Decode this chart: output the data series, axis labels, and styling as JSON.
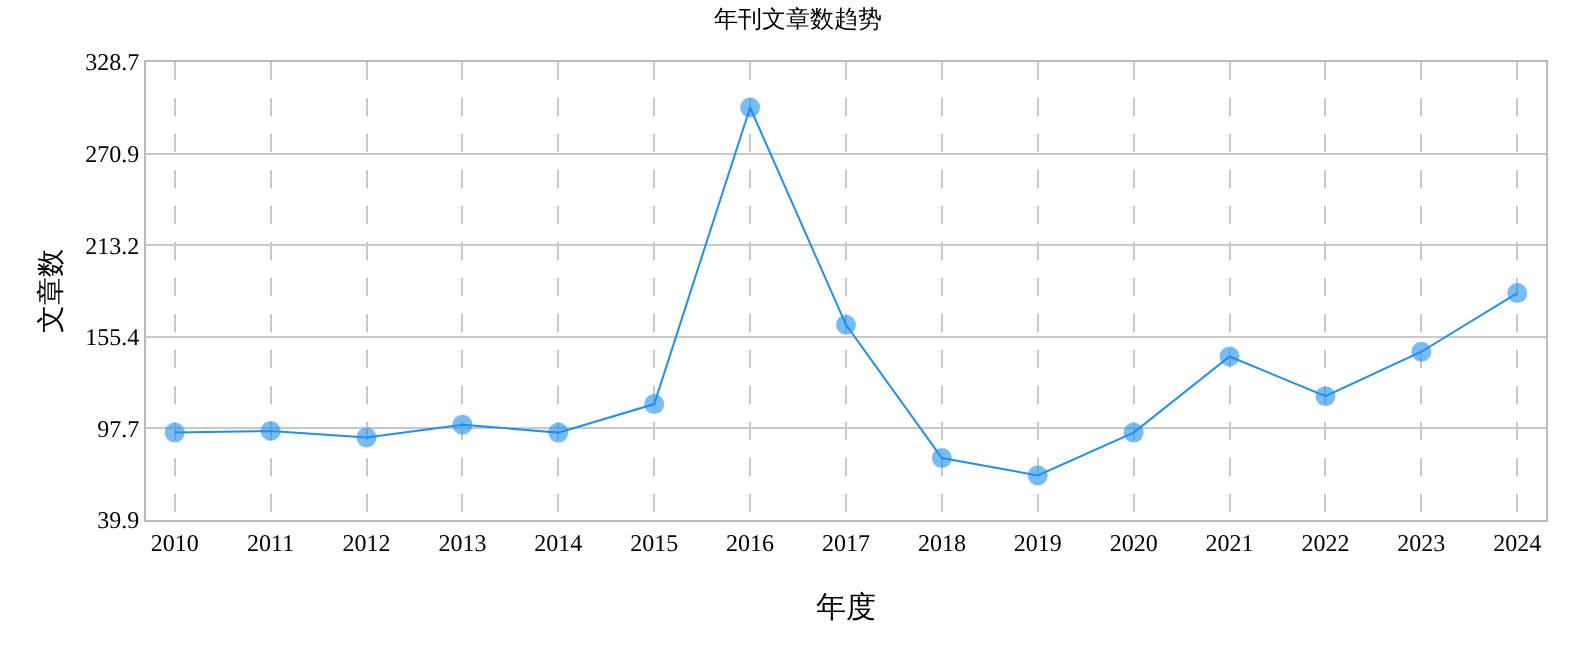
{
  "chart_data": {
    "type": "line",
    "title": "年刊文章数趋势",
    "xlabel": "年度",
    "ylabel": "文章数",
    "categories": [
      "2010",
      "2011",
      "2012",
      "2013",
      "2014",
      "2015",
      "2016",
      "2017",
      "2018",
      "2019",
      "2020",
      "2021",
      "2022",
      "2023",
      "2024"
    ],
    "series": [
      {
        "color": "#1e90f0",
        "values": [
          95,
          96,
          92,
          100,
          95,
          113,
          300,
          163,
          79,
          68,
          95,
          143,
          118,
          146,
          183
        ]
      }
    ],
    "ylim": [
      39.9,
      328.7
    ],
    "yticks": [
      39.9,
      97.7,
      155.4,
      213.2,
      270.9,
      328.7
    ],
    "grid": true,
    "marker": "circle",
    "line_style": "solid"
  }
}
